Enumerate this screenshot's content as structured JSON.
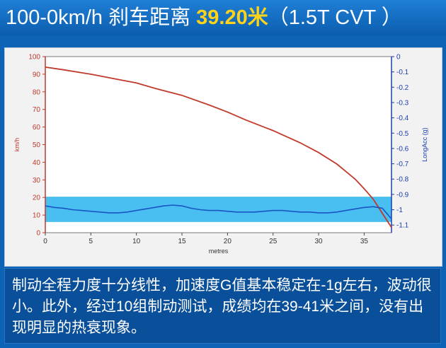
{
  "header": {
    "prefix": "100-0km/h 刹车距离 ",
    "distance": "39.20米",
    "suffix": "（1.5T CVT ）"
  },
  "caption": {
    "text": "制动全程力度十分线性，加速度G值基本稳定在-1g左右，波动很小。此外，经过10组制动测试，成绩均在39-41米之间，没有出现明显的热衰现象。"
  },
  "chart_data": {
    "type": "line",
    "xlabel": "metres",
    "ylabel": "km/h",
    "y2label": "LongAcc (g)",
    "xlim": [
      0,
      38
    ],
    "ylim": [
      0,
      100
    ],
    "y2lim": [
      -1.15,
      0
    ],
    "xticks": [
      0,
      5,
      10,
      15,
      20,
      25,
      30,
      35
    ],
    "yticks": [
      0,
      10,
      20,
      30,
      40,
      50,
      60,
      70,
      80,
      90,
      100
    ],
    "y2ticks": [
      0,
      -0.1,
      -0.2,
      -0.3,
      -0.4,
      -0.5,
      -0.6,
      -0.7,
      -0.8,
      -0.9,
      -1,
      -1.1
    ],
    "grid": false,
    "band": {
      "y2_from": -0.915,
      "y2_to": -1.08,
      "color": "#35b8f0"
    },
    "series": [
      {
        "axis": "left",
        "color": "#c0392b",
        "x": [
          0,
          2,
          5,
          8,
          10,
          12,
          15,
          18,
          20,
          22,
          25,
          28,
          30,
          32,
          34,
          35,
          36,
          37,
          38
        ],
        "y": [
          94,
          92.5,
          90,
          87,
          85,
          82,
          78,
          72.5,
          68.5,
          64,
          58,
          51,
          45.5,
          39,
          30.5,
          25,
          19,
          11,
          3
        ]
      },
      {
        "axis": "right",
        "color": "#1a55c4",
        "x": [
          0,
          1,
          2,
          3,
          4,
          5,
          6,
          7,
          8,
          9,
          10,
          11,
          12,
          13,
          14,
          15,
          16,
          17,
          18,
          19,
          20,
          21,
          22,
          23,
          24,
          25,
          26,
          27,
          28,
          29,
          30,
          31,
          32,
          33,
          34,
          35,
          36,
          37,
          38
        ],
        "y": [
          -0.975,
          -0.985,
          -0.99,
          -1.0,
          -1.005,
          -1.01,
          -1.015,
          -1.02,
          -1.02,
          -1.015,
          -1.005,
          -0.995,
          -0.985,
          -0.975,
          -0.97,
          -0.975,
          -0.99,
          -1.0,
          -1.005,
          -1.005,
          -1.01,
          -1.015,
          -1.015,
          -1.015,
          -1.01,
          -1.005,
          -1.005,
          -1.01,
          -1.015,
          -1.015,
          -1.02,
          -1.02,
          -1.015,
          -1.005,
          -0.995,
          -0.985,
          -0.98,
          -0.99,
          -1.06
        ]
      }
    ]
  }
}
